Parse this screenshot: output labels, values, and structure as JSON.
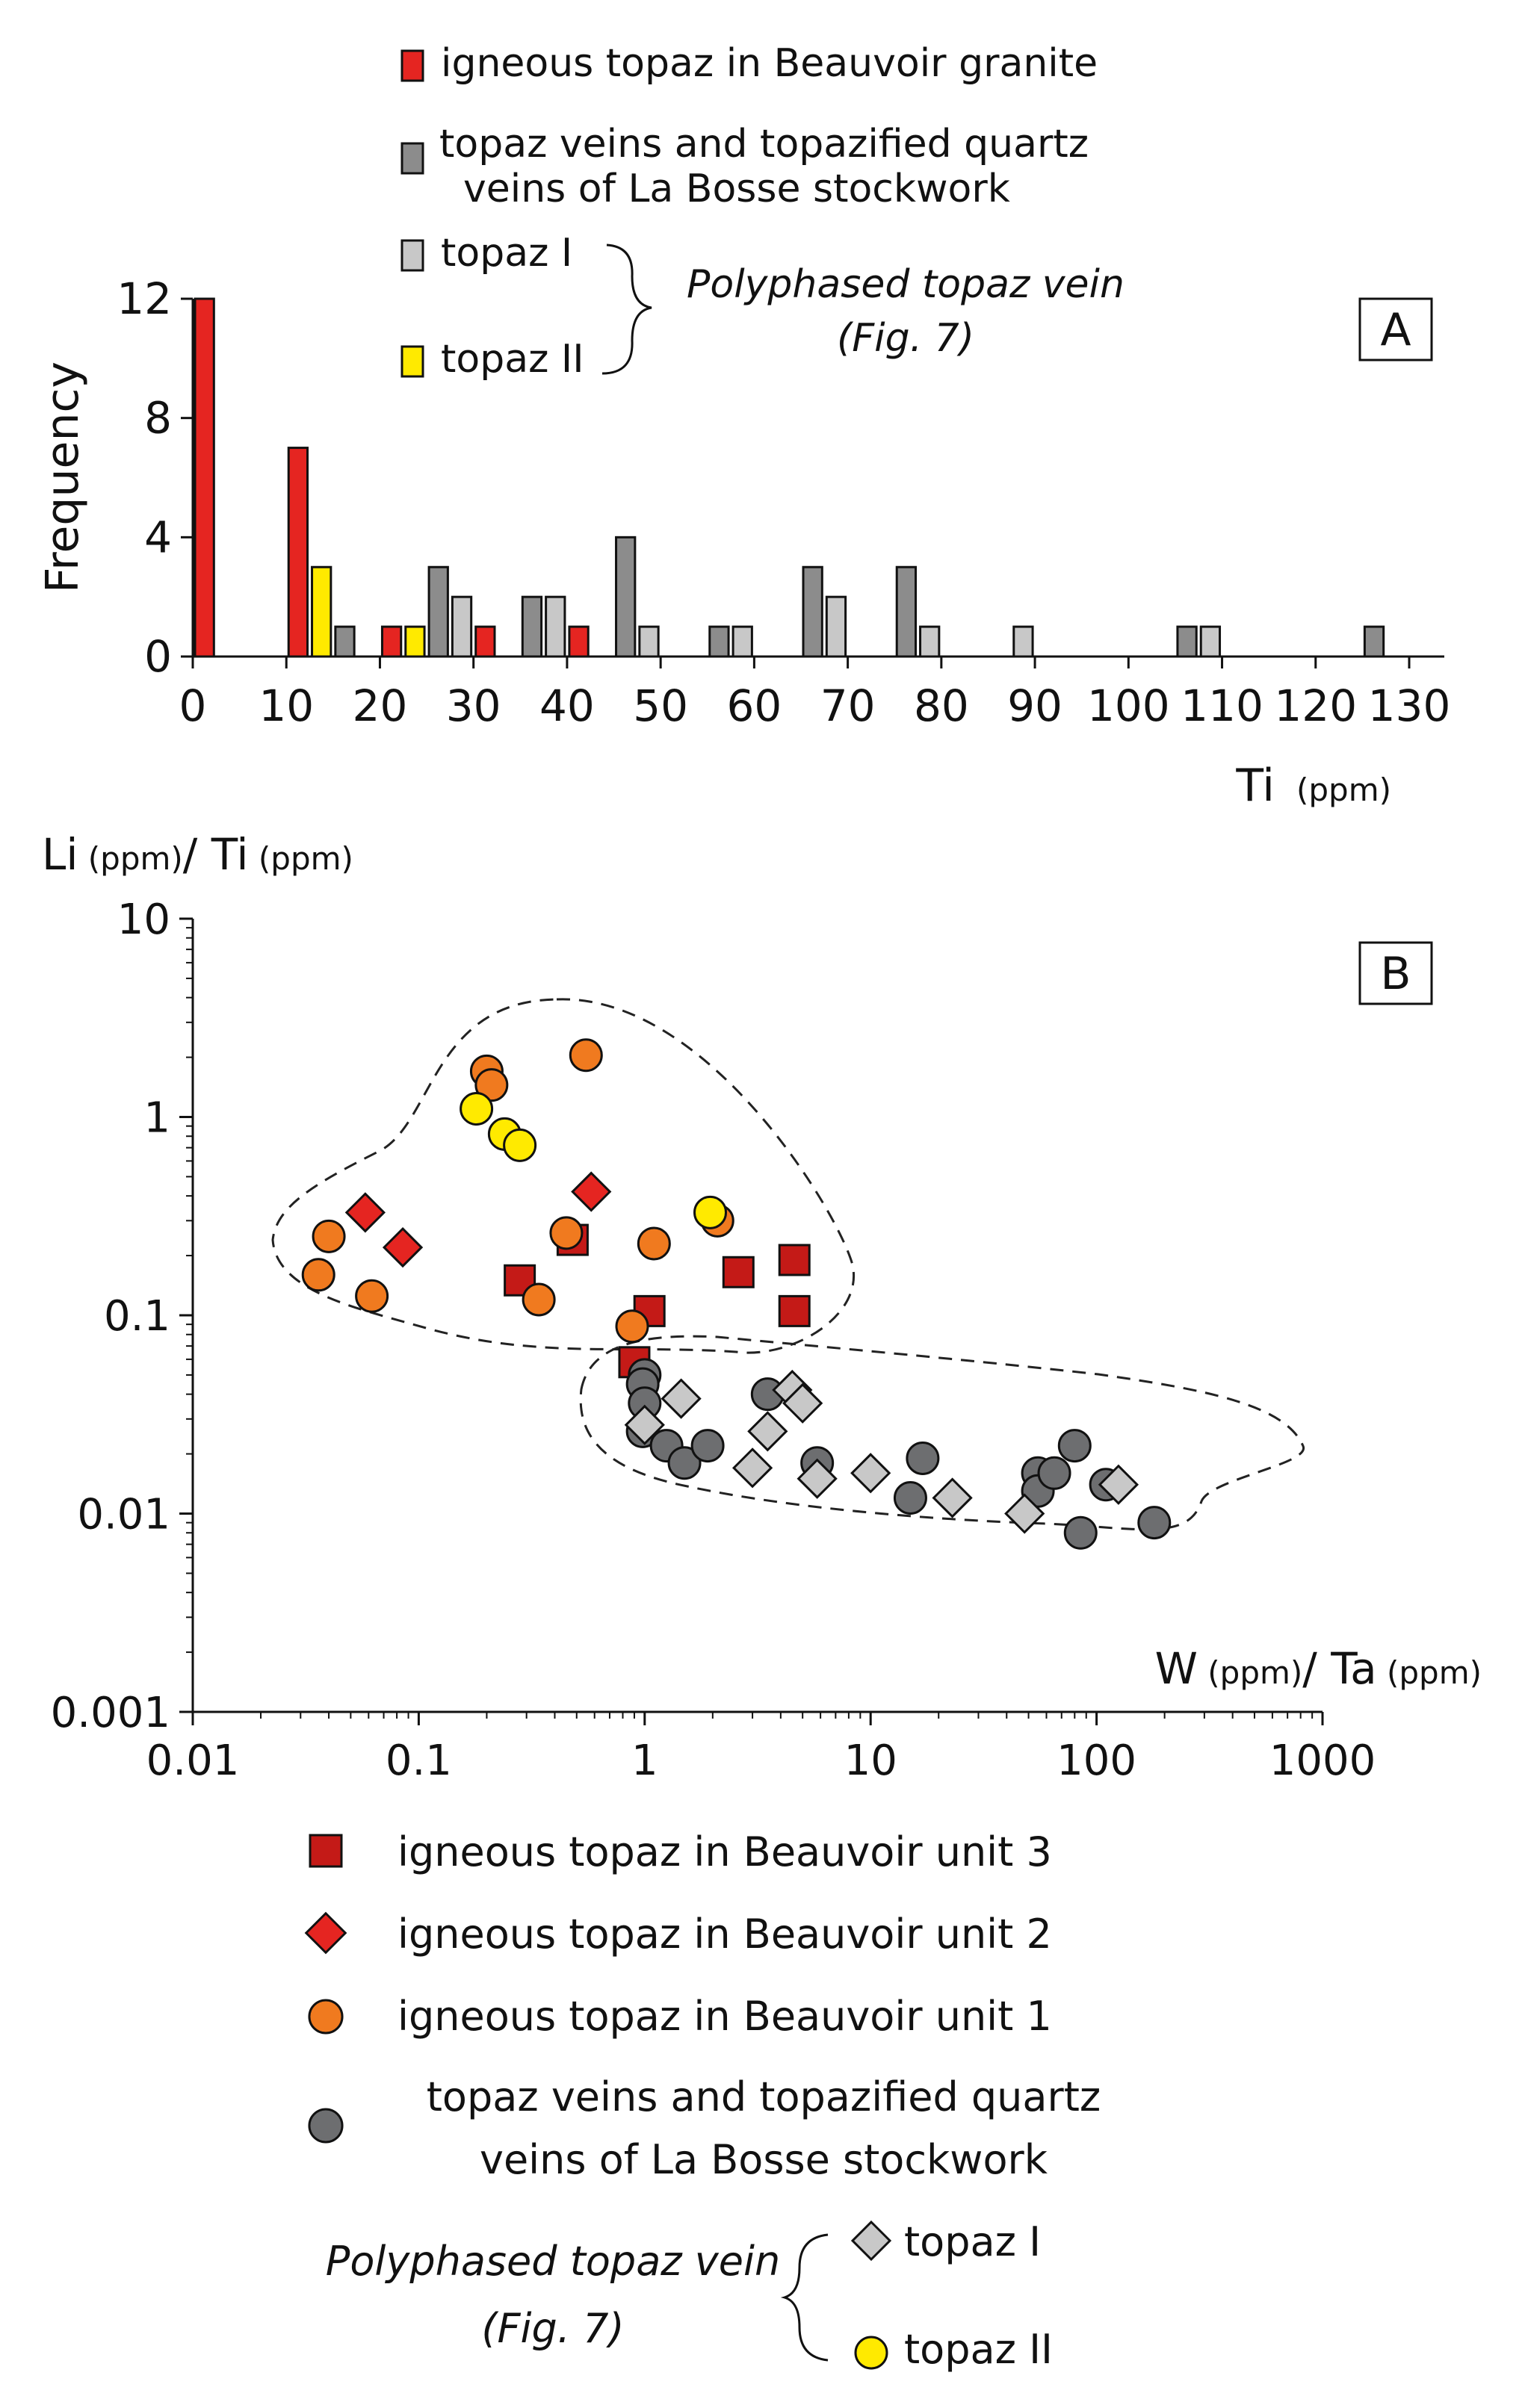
{
  "chart_data": [
    {
      "panel": "A",
      "type": "bar",
      "title": "",
      "panel_label": "A",
      "xlabel": "Ti",
      "xlabel_unit": "(ppm)",
      "ylabel": "Frequency",
      "xlim": [
        0,
        130
      ],
      "ylim": [
        0,
        12
      ],
      "x_ticks": [
        "0",
        "10",
        "20",
        "30",
        "40",
        "50",
        "60",
        "70",
        "80",
        "90",
        "100",
        "110",
        "120",
        "130"
      ],
      "y_ticks": [
        "0",
        "4",
        "8",
        "12"
      ],
      "grid": false,
      "legend_position": "top",
      "colors": {
        "beauvoir": "#e52521",
        "stockwork": "#8c8c8c",
        "topaz1": "#c8c8c8",
        "topaz2": "#ffea00"
      },
      "legend": [
        {
          "key": "beauvoir",
          "lines": [
            "igneous topaz in Beauvoir granite"
          ]
        },
        {
          "key": "stockwork",
          "lines": [
            "topaz veins and topazified quartz",
            "veins of La Bosse stockwork"
          ]
        },
        {
          "key": "topaz1",
          "lines": [
            "topaz I"
          ]
        },
        {
          "key": "topaz2",
          "lines": [
            "topaz II"
          ]
        }
      ],
      "legend_group": {
        "lines": [
          "Polyphased topaz vein",
          "(Fig. 7)"
        ]
      },
      "bars": [
        {
          "series": "beauvoir",
          "x": 0,
          "value": 12
        },
        {
          "series": "beauvoir",
          "x": 10,
          "value": 7
        },
        {
          "series": "topaz2",
          "x": 12.5,
          "value": 3
        },
        {
          "series": "stockwork",
          "x": 15,
          "value": 1
        },
        {
          "series": "beauvoir",
          "x": 20,
          "value": 1
        },
        {
          "series": "topaz2",
          "x": 22.5,
          "value": 1
        },
        {
          "series": "stockwork",
          "x": 25,
          "value": 3
        },
        {
          "series": "topaz1",
          "x": 27.5,
          "value": 2
        },
        {
          "series": "beauvoir",
          "x": 30,
          "value": 1
        },
        {
          "series": "stockwork",
          "x": 35,
          "value": 2
        },
        {
          "series": "topaz1",
          "x": 37.5,
          "value": 2
        },
        {
          "series": "beauvoir",
          "x": 40,
          "value": 1
        },
        {
          "series": "stockwork",
          "x": 45,
          "value": 4
        },
        {
          "series": "topaz1",
          "x": 47.5,
          "value": 1
        },
        {
          "series": "stockwork",
          "x": 55,
          "value": 1
        },
        {
          "series": "topaz1",
          "x": 57.5,
          "value": 1
        },
        {
          "series": "stockwork",
          "x": 65,
          "value": 3
        },
        {
          "series": "topaz1",
          "x": 67.5,
          "value": 2
        },
        {
          "series": "stockwork",
          "x": 75,
          "value": 3
        },
        {
          "series": "topaz1",
          "x": 77.5,
          "value": 1
        },
        {
          "series": "topaz1",
          "x": 87.5,
          "value": 1
        },
        {
          "series": "stockwork",
          "x": 105,
          "value": 1
        },
        {
          "series": "topaz1",
          "x": 107.5,
          "value": 1
        },
        {
          "series": "stockwork",
          "x": 125,
          "value": 1
        }
      ]
    },
    {
      "panel": "B",
      "type": "scatter",
      "title": "",
      "panel_label": "B",
      "xlabel": "W (ppm)/ Ta (ppm)",
      "xlabel_parts": [
        "W",
        " (ppm)",
        "/ Ta",
        " (ppm)"
      ],
      "ylabel": "Li (ppm)/ Ti (ppm)",
      "ylabel_parts": [
        "Li",
        " (ppm)",
        "/ Ti",
        " (ppm)"
      ],
      "x_scale": "log",
      "y_scale": "log",
      "xlim": [
        0.01,
        1000
      ],
      "ylim": [
        0.001,
        10
      ],
      "x_ticks": [
        "0.01",
        "0.1",
        "1",
        "10",
        "100",
        "1000"
      ],
      "y_ticks": [
        "0.001",
        "0.01",
        "0.1",
        "1",
        "10"
      ],
      "grid": false,
      "legend_position": "bottom",
      "colors": {
        "unit3": "#c41a17",
        "unit2": "#e52521",
        "unit1": "#f07a1f",
        "stockwork": "#6d6e70",
        "topaz1": "#c8c8c8",
        "topaz2": "#ffea00"
      },
      "legend": [
        {
          "key": "unit3",
          "marker": "square",
          "lines": [
            "igneous topaz in Beauvoir unit 3"
          ]
        },
        {
          "key": "unit2",
          "marker": "diamond",
          "lines": [
            "igneous topaz in Beauvoir unit 2"
          ]
        },
        {
          "key": "unit1",
          "marker": "circle",
          "lines": [
            "igneous topaz in Beauvoir unit 1"
          ]
        },
        {
          "key": "stockwork",
          "marker": "circle",
          "lines": [
            "topaz veins and topazified quartz",
            "veins of La Bosse stockwork"
          ]
        }
      ],
      "legend_group": {
        "lines": [
          "Polyphased topaz vein",
          "(Fig. 7)"
        ],
        "items": [
          {
            "key": "topaz1",
            "marker": "diamond",
            "label": "topaz I"
          },
          {
            "key": "topaz2",
            "marker": "circle",
            "label": "topaz II"
          }
        ]
      },
      "series": [
        {
          "name": "igneous topaz in Beauvoir unit 3",
          "key": "unit3",
          "marker": "square",
          "points": [
            [
              0.28,
              0.15
            ],
            [
              0.48,
              0.24
            ],
            [
              1.05,
              0.105
            ],
            [
              0.9,
              0.058
            ],
            [
              2.6,
              0.165
            ],
            [
              4.6,
              0.19
            ],
            [
              4.6,
              0.105
            ]
          ]
        },
        {
          "name": "igneous topaz in Beauvoir unit 2",
          "key": "unit2",
          "marker": "diamond",
          "points": [
            [
              0.058,
              0.33
            ],
            [
              0.085,
              0.22
            ],
            [
              0.58,
              0.42
            ]
          ]
        },
        {
          "name": "igneous topaz in Beauvoir unit 1",
          "key": "unit1",
          "marker": "circle",
          "points": [
            [
              0.2,
              1.7
            ],
            [
              0.21,
              1.45
            ],
            [
              0.55,
              2.05
            ],
            [
              0.04,
              0.25
            ],
            [
              0.036,
              0.16
            ],
            [
              0.062,
              0.125
            ],
            [
              0.34,
              0.12
            ],
            [
              0.45,
              0.26
            ],
            [
              1.1,
              0.23
            ],
            [
              2.1,
              0.3
            ],
            [
              0.88,
              0.088
            ]
          ]
        },
        {
          "name": "topaz II",
          "key": "topaz2",
          "marker": "circle",
          "points": [
            [
              0.18,
              1.1
            ],
            [
              0.24,
              0.82
            ],
            [
              0.28,
              0.72
            ],
            [
              1.95,
              0.33
            ]
          ]
        },
        {
          "name": "topaz veins and topazified quartz veins of La Bosse stockwork",
          "key": "stockwork",
          "marker": "circle",
          "points": [
            [
              1.0,
              0.05
            ],
            [
              0.98,
              0.045
            ],
            [
              1.0,
              0.036
            ],
            [
              0.98,
              0.026
            ],
            [
              1.25,
              0.022
            ],
            [
              1.5,
              0.018
            ],
            [
              1.9,
              0.022
            ],
            [
              3.5,
              0.04
            ],
            [
              5.8,
              0.018
            ],
            [
              15,
              0.012
            ],
            [
              17,
              0.019
            ],
            [
              55,
              0.016
            ],
            [
              55,
              0.013
            ],
            [
              65,
              0.016
            ],
            [
              80,
              0.022
            ],
            [
              85,
              0.008
            ],
            [
              110,
              0.014
            ],
            [
              180,
              0.009
            ]
          ]
        },
        {
          "name": "topaz I",
          "key": "topaz1",
          "marker": "diamond",
          "points": [
            [
              1.45,
              0.038
            ],
            [
              1.0,
              0.028
            ],
            [
              3.5,
              0.026
            ],
            [
              4.5,
              0.042
            ],
            [
              5.0,
              0.036
            ],
            [
              3.0,
              0.017
            ],
            [
              5.8,
              0.015
            ],
            [
              10,
              0.016
            ],
            [
              23,
              0.012
            ],
            [
              48,
              0.01
            ],
            [
              125,
              0.014
            ]
          ]
        }
      ],
      "fields": [
        {
          "name": "granite-field"
        },
        {
          "name": "stockwork-field"
        }
      ]
    }
  ]
}
